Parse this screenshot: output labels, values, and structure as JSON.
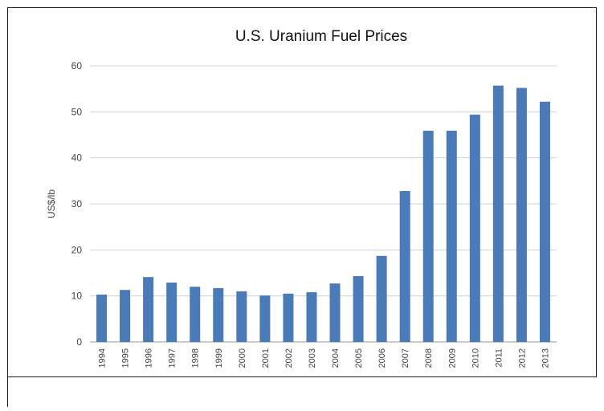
{
  "chart_data": {
    "type": "bar",
    "title": "U.S. Uranium Fuel Prices",
    "y_label": "US$/lb",
    "categories": [
      "1994",
      "1995",
      "1996",
      "1997",
      "1998",
      "1999",
      "2000",
      "2001",
      "2002",
      "2003",
      "2004",
      "2005",
      "2006",
      "2007",
      "2008",
      "2009",
      "2010",
      "2011",
      "2012",
      "2013"
    ],
    "values": [
      10.3,
      11.3,
      14.1,
      12.9,
      12.0,
      11.7,
      11.0,
      10.1,
      10.5,
      10.8,
      12.7,
      14.3,
      18.7,
      32.8,
      45.9,
      45.9,
      49.4,
      55.7,
      55.2,
      52.2
    ],
    "color": "#4a7ab8",
    "ylim": [
      0,
      60
    ],
    "yticks": [
      0,
      10,
      20,
      30,
      40,
      50,
      60
    ],
    "grid": true
  }
}
